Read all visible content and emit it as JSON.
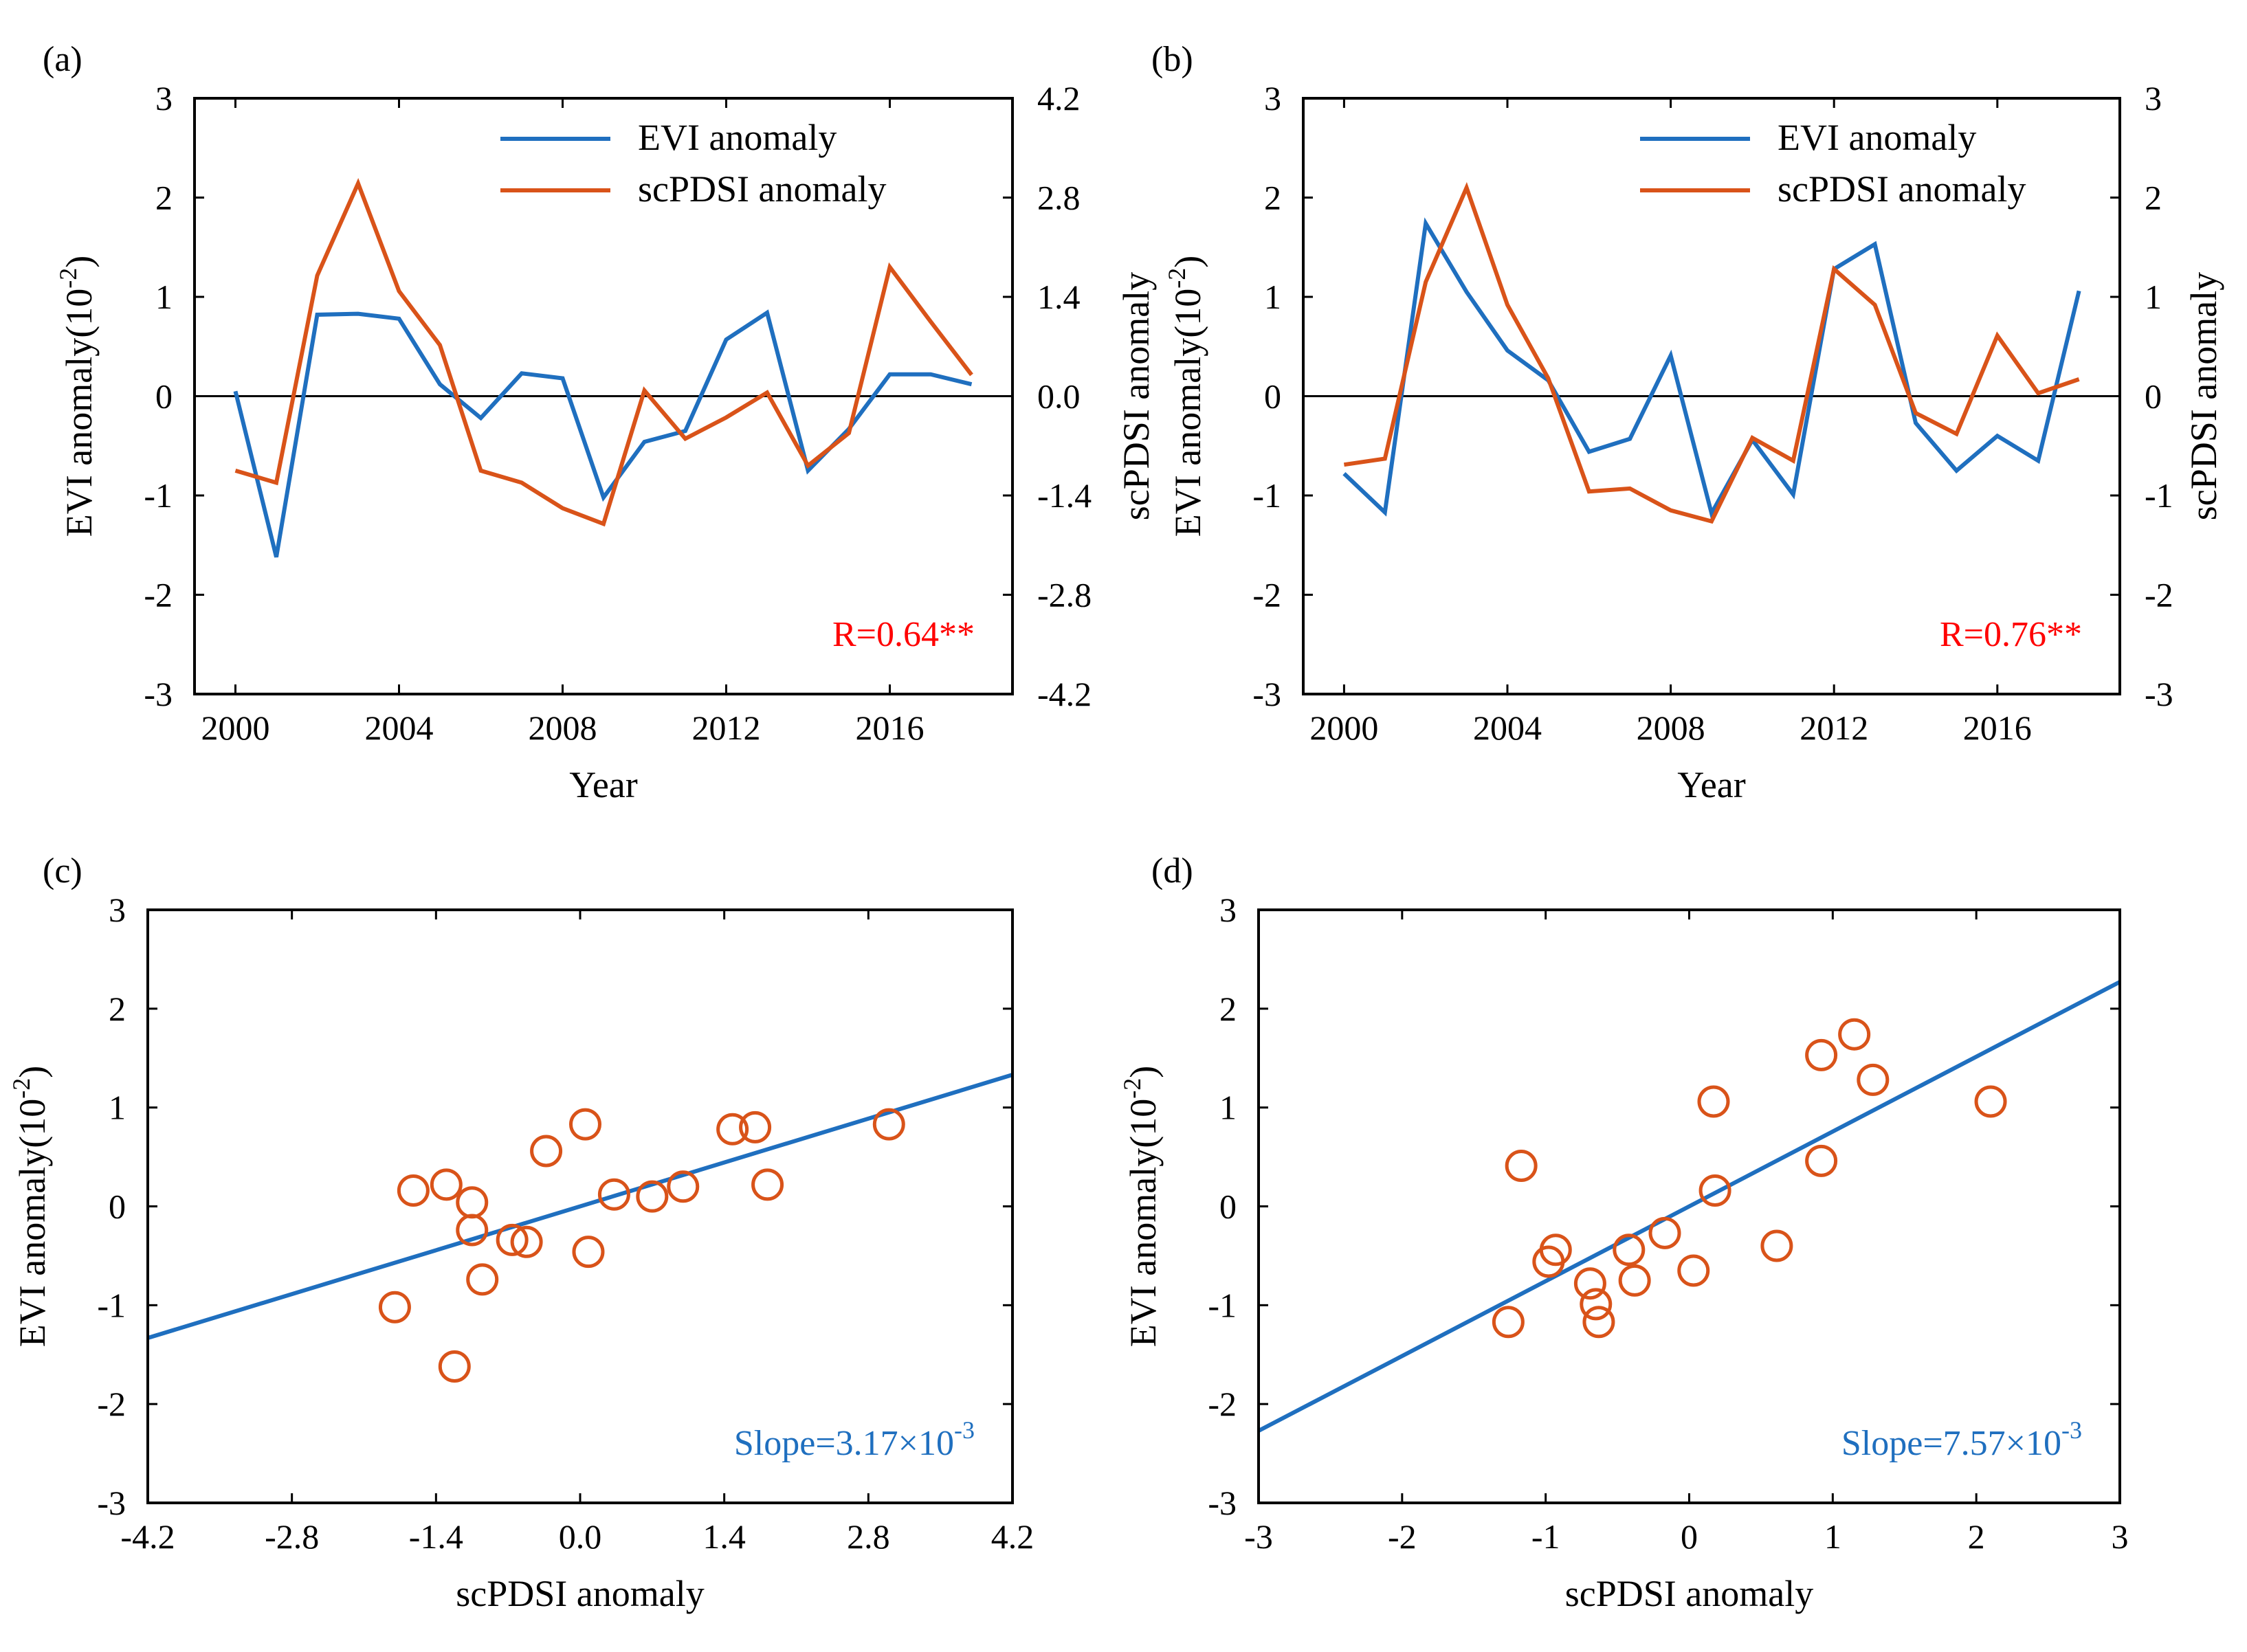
{
  "figure": {
    "blue_color": "#1f6fbf",
    "orange_color": "#d95319",
    "annotation_red": "#ff0000"
  },
  "chart_data": [
    {
      "panel_label": "(a)",
      "type": "line",
      "title": "",
      "xlabel": "Year",
      "ylabel_left": "EVI anomaly(10",
      "ylabel_left_exp": "-2",
      "ylabel_left_close": ")",
      "ylabel_right": "scPDSI anomaly",
      "xlim": [
        1999,
        2019
      ],
      "ylim_left": [
        -3,
        3
      ],
      "ylim_right": [
        -4.2,
        4.2
      ],
      "x_ticks": [
        2000,
        2004,
        2008,
        2012,
        2016
      ],
      "x_tick_labels": [
        "2000",
        "2004",
        "2008",
        "2012",
        "2016"
      ],
      "y_ticks_left": [
        -3,
        -2,
        -1,
        0,
        1,
        2,
        3
      ],
      "y_tick_labels_left": [
        "-3",
        "-2",
        "-1",
        "0",
        "1",
        "2",
        "3"
      ],
      "y_ticks_right": [
        -4.2,
        -2.8,
        -1.4,
        0,
        1.4,
        2.8,
        4.2
      ],
      "y_tick_labels_right": [
        "-4.2",
        "-2.8",
        "-1.4",
        "0.0",
        "1.4",
        "2.8",
        "4.2"
      ],
      "zero_line": true,
      "legend_position": "top-right",
      "series": [
        {
          "name": "EVI anomaly",
          "axis": "left",
          "color": "#1f6fbf",
          "x": [
            2000,
            2001,
            2002,
            2003,
            2004,
            2005,
            2006,
            2007,
            2008,
            2009,
            2010,
            2011,
            2012,
            2013,
            2014,
            2015,
            2016,
            2017,
            2018
          ],
          "values": [
            0.05,
            -1.62,
            0.82,
            0.83,
            0.78,
            0.12,
            -0.22,
            0.23,
            0.18,
            -1.02,
            -0.46,
            -0.35,
            0.57,
            0.84,
            -0.75,
            -0.33,
            0.22,
            0.22,
            0.12
          ]
        },
        {
          "name": "scPDSI anomaly",
          "axis": "right",
          "color": "#d95319",
          "x": [
            2000,
            2001,
            2002,
            2003,
            2004,
            2005,
            2006,
            2007,
            2008,
            2009,
            2010,
            2011,
            2012,
            2013,
            2014,
            2015,
            2016,
            2017,
            2018
          ],
          "values": [
            -1.05,
            -1.22,
            1.7,
            3.0,
            1.48,
            0.72,
            -1.05,
            -1.22,
            -1.58,
            -1.8,
            0.08,
            -0.6,
            -0.3,
            0.05,
            -0.98,
            -0.52,
            1.82,
            1.05,
            0.3
          ]
        }
      ],
      "annotation": {
        "text": "R=0.64**",
        "color": "#ff0000",
        "position": "bottom-right"
      }
    },
    {
      "panel_label": "(b)",
      "type": "line",
      "title": "",
      "xlabel": "Year",
      "ylabel_left": "EVI anomaly(10",
      "ylabel_left_exp": "-2",
      "ylabel_left_close": ")",
      "ylabel_right": "scPDSI anomaly",
      "xlim": [
        1999,
        2019
      ],
      "ylim_left": [
        -3,
        3
      ],
      "ylim_right": [
        -3,
        3
      ],
      "x_ticks": [
        2000,
        2004,
        2008,
        2012,
        2016
      ],
      "x_tick_labels": [
        "2000",
        "2004",
        "2008",
        "2012",
        "2016"
      ],
      "y_ticks_left": [
        -3,
        -2,
        -1,
        0,
        1,
        2,
        3
      ],
      "y_tick_labels_left": [
        "-3",
        "-2",
        "-1",
        "0",
        "1",
        "2",
        "3"
      ],
      "y_ticks_right": [
        -3,
        -2,
        -1,
        0,
        1,
        2,
        3
      ],
      "y_tick_labels_right": [
        "-3",
        "-2",
        "-1",
        "0",
        "1",
        "2",
        "3"
      ],
      "zero_line": true,
      "legend_position": "top-right",
      "series": [
        {
          "name": "EVI anomaly",
          "axis": "left",
          "color": "#1f6fbf",
          "x": [
            2000,
            2001,
            2002,
            2003,
            2004,
            2005,
            2006,
            2007,
            2008,
            2009,
            2010,
            2011,
            2012,
            2013,
            2014,
            2015,
            2016,
            2017,
            2018
          ],
          "values": [
            -0.78,
            -1.17,
            1.74,
            1.05,
            0.46,
            0.16,
            -0.56,
            -0.43,
            0.41,
            -1.18,
            -0.44,
            -0.99,
            1.28,
            1.53,
            -0.27,
            -0.75,
            -0.4,
            -0.65,
            1.06
          ]
        },
        {
          "name": "scPDSI anomaly",
          "axis": "right",
          "color": "#d95319",
          "x": [
            2000,
            2001,
            2002,
            2003,
            2004,
            2005,
            2006,
            2007,
            2008,
            2009,
            2010,
            2011,
            2012,
            2013,
            2014,
            2015,
            2016,
            2017,
            2018
          ],
          "values": [
            -0.69,
            -0.63,
            1.15,
            2.1,
            0.92,
            0.18,
            -0.96,
            -0.93,
            -1.15,
            -1.26,
            -0.42,
            -0.65,
            1.28,
            0.92,
            -0.17,
            -0.38,
            0.61,
            0.03,
            0.17
          ]
        }
      ],
      "annotation": {
        "text": "R=0.76**",
        "color": "#ff0000",
        "position": "bottom-right"
      }
    },
    {
      "panel_label": "(c)",
      "type": "scatter",
      "title": "",
      "xlabel": "scPDSI anomaly",
      "ylabel_left": "EVI anomaly(10",
      "ylabel_left_exp": "-2",
      "ylabel_left_close": ")",
      "xlim": [
        -4.2,
        4.2
      ],
      "ylim_left": [
        -3,
        3
      ],
      "x_ticks": [
        -4.2,
        -2.8,
        -1.4,
        0,
        1.4,
        2.8,
        4.2
      ],
      "x_tick_labels": [
        "-4.2",
        "-2.8",
        "-1.4",
        "0.0",
        "1.4",
        "2.8",
        "4.2"
      ],
      "y_ticks_left": [
        -3,
        -2,
        -1,
        0,
        1,
        2,
        3
      ],
      "y_tick_labels_left": [
        "-3",
        "-2",
        "-1",
        "0",
        "1",
        "2",
        "3"
      ],
      "points_color": "#d95319",
      "points": [
        [
          -1.8,
          -1.02
        ],
        [
          -1.22,
          -1.62
        ],
        [
          -1.62,
          0.16
        ],
        [
          -1.3,
          0.22
        ],
        [
          -1.05,
          0.04
        ],
        [
          -1.05,
          -0.24
        ],
        [
          -0.95,
          -0.74
        ],
        [
          -0.66,
          -0.34
        ],
        [
          -0.52,
          -0.36
        ],
        [
          -0.33,
          0.56
        ],
        [
          0.05,
          0.83
        ],
        [
          0.08,
          -0.46
        ],
        [
          0.33,
          0.12
        ],
        [
          0.7,
          0.1
        ],
        [
          1.0,
          0.2
        ],
        [
          1.48,
          0.78
        ],
        [
          1.7,
          0.8
        ],
        [
          1.82,
          0.22
        ],
        [
          3.0,
          0.83
        ]
      ],
      "fit_line": {
        "slope": 0.317,
        "intercept": 0.0,
        "color": "#1f6fbf"
      },
      "annotation": {
        "text": "Slope=3.17×10",
        "exp": "-3",
        "color": "#1f6fbf",
        "position": "bottom-right"
      }
    },
    {
      "panel_label": "(d)",
      "type": "scatter",
      "title": "",
      "xlabel": "scPDSI anomaly",
      "ylabel_left": "EVI anomaly(10",
      "ylabel_left_exp": "-2",
      "ylabel_left_close": ")",
      "xlim": [
        -3,
        3
      ],
      "ylim_left": [
        -3,
        3
      ],
      "x_ticks": [
        -3,
        -2,
        -1,
        0,
        1,
        2,
        3
      ],
      "x_tick_labels": [
        "-3",
        "-2",
        "-1",
        "0",
        "1",
        "2",
        "3"
      ],
      "y_ticks_left": [
        -3,
        -2,
        -1,
        0,
        1,
        2,
        3
      ],
      "y_tick_labels_left": [
        "-3",
        "-2",
        "-1",
        "0",
        "1",
        "2",
        "3"
      ],
      "points_color": "#d95319",
      "points": [
        [
          -1.26,
          -1.17
        ],
        [
          -1.17,
          0.41
        ],
        [
          -0.98,
          -0.56
        ],
        [
          -0.93,
          -0.44
        ],
        [
          -0.69,
          -0.78
        ],
        [
          -0.65,
          -0.99
        ],
        [
          -0.63,
          -1.17
        ],
        [
          -0.42,
          -0.44
        ],
        [
          -0.38,
          -0.75
        ],
        [
          -0.17,
          -0.27
        ],
        [
          0.03,
          -0.65
        ],
        [
          0.17,
          1.06
        ],
        [
          0.18,
          0.16
        ],
        [
          0.61,
          -0.4
        ],
        [
          0.92,
          1.53
        ],
        [
          0.92,
          0.46
        ],
        [
          1.15,
          1.74
        ],
        [
          1.28,
          1.28
        ],
        [
          2.1,
          1.06
        ]
      ],
      "fit_line": {
        "slope": 0.757,
        "intercept": 0.0,
        "color": "#1f6fbf"
      },
      "annotation": {
        "text": "Slope=7.57×10",
        "exp": "-3",
        "color": "#1f6fbf",
        "position": "bottom-right"
      }
    }
  ]
}
